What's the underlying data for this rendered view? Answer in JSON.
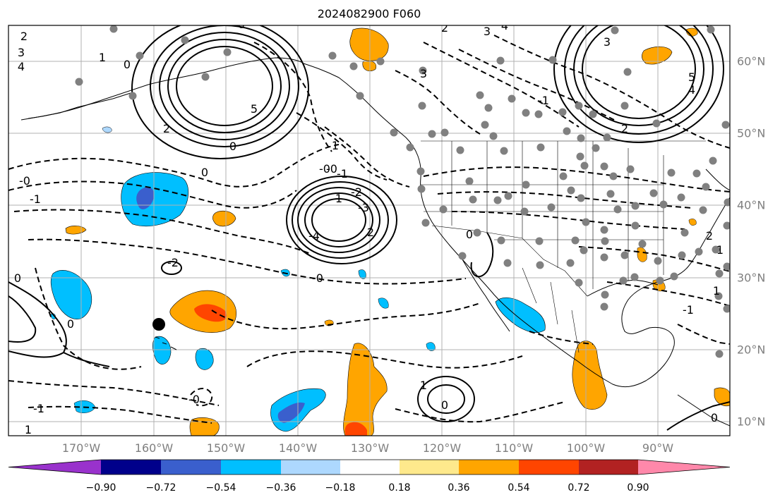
{
  "title": "2024082900 F060",
  "longitude_labels": [
    "170°W",
    "160°W",
    "150°W",
    "140°W",
    "130°W",
    "120°W",
    "110°W",
    "100°W",
    "90°W"
  ],
  "latitude_labels": [
    "60°N",
    "50°N",
    "40°N",
    "30°N",
    "20°N",
    "10°N"
  ],
  "colorbar": {
    "ticks": [
      "−0.90",
      "−0.72",
      "−0.54",
      "−0.36",
      "−0.18",
      "0.18",
      "0.36",
      "0.54",
      "0.72",
      "0.90"
    ],
    "colors": [
      "#9932cc",
      "#00008b",
      "#3a5fcd",
      "#00bfff",
      "#add8fe",
      "#ffffff",
      "#fee98c",
      "#ffa500",
      "#ff4500",
      "#b22222",
      "#ff88aa"
    ]
  },
  "contour_labels": [
    "2",
    "3",
    "4",
    "0",
    "1",
    "5",
    "2",
    "3",
    "4",
    "3",
    "5",
    "4",
    "2",
    "0",
    "2",
    "3",
    "1",
    "0",
    "0",
    "1",
    "2",
    "-0",
    "-1",
    "-2",
    "-3",
    "-4",
    "-2",
    "-1",
    "-0",
    "0",
    "-0",
    "-1",
    "1",
    "0",
    "-0",
    "1",
    "0",
    "2",
    "-1",
    "0",
    "1",
    "1",
    "-1",
    "-0",
    "0"
  ],
  "point_color": "#808080",
  "marker_color": "#000000"
}
